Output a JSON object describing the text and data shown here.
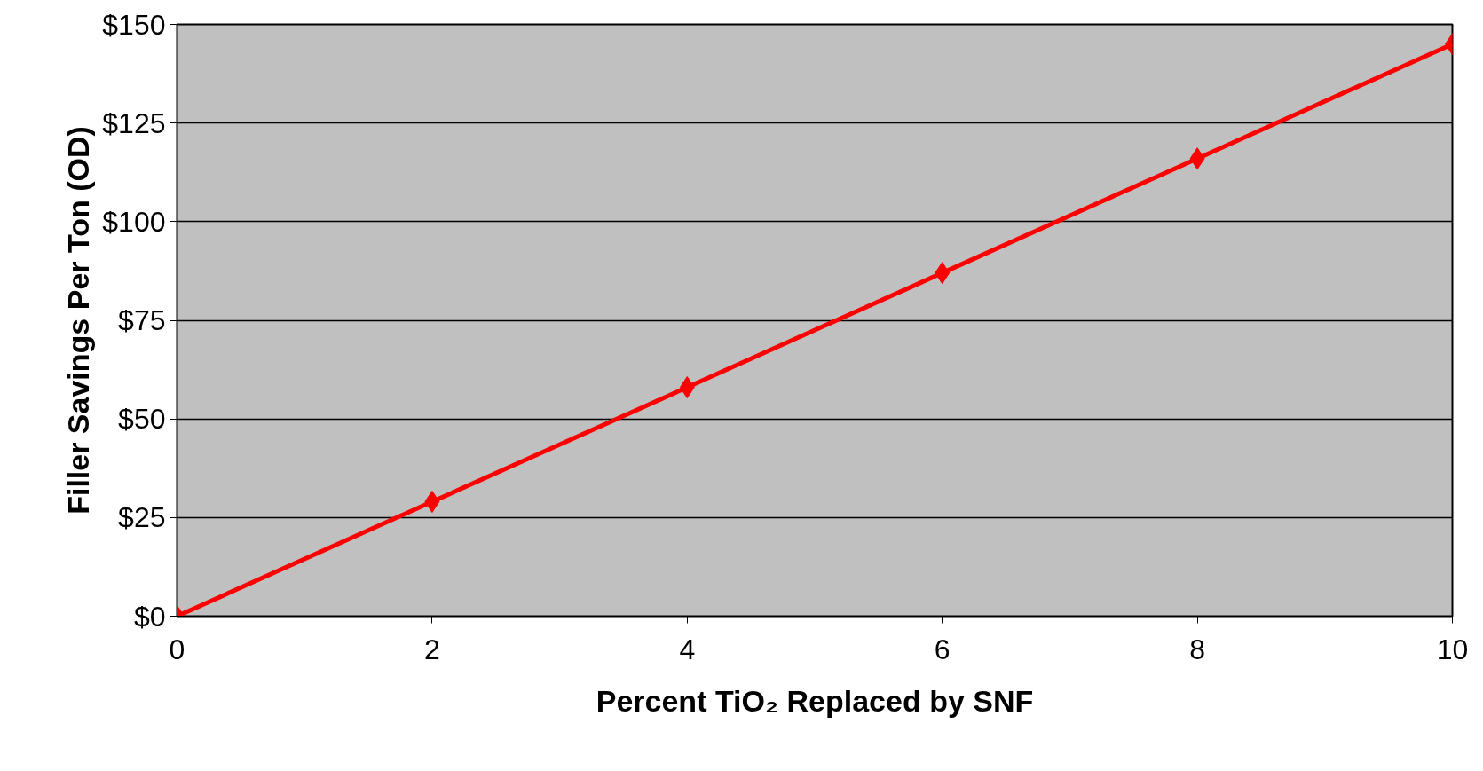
{
  "chart_data": {
    "type": "line",
    "xlabel": "Percent TiO₂ Replaced by SNF",
    "ylabel": "Filler Savings Per Ton (OD)",
    "x": [
      0,
      2,
      4,
      6,
      8,
      10
    ],
    "series": [
      {
        "color": "#ff0000",
        "values": [
          0,
          29,
          58,
          87,
          116,
          145
        ]
      }
    ],
    "xlim": [
      0,
      10
    ],
    "xticks": [
      0,
      2,
      4,
      6,
      8,
      10
    ],
    "ylim": [
      0,
      150
    ],
    "yticks": [
      {
        "value": 0,
        "label": "$0"
      },
      {
        "value": 25,
        "label": "$25"
      },
      {
        "value": 50,
        "label": "$50"
      },
      {
        "value": 75,
        "label": "$75"
      },
      {
        "value": 100,
        "label": "$100"
      },
      {
        "value": 125,
        "label": "$125"
      },
      {
        "value": 150,
        "label": "$150"
      }
    ],
    "grid": "y",
    "marker": "diamond",
    "line_style": "solid"
  }
}
